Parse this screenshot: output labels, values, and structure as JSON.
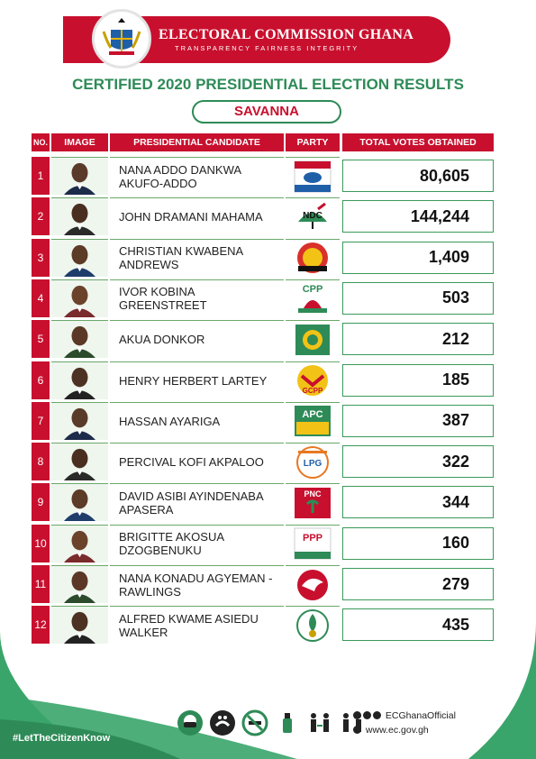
{
  "header": {
    "title": "ELECTORAL COMMISSION GHANA",
    "subtitle": "TRANSPARENCY  FAIRNESS  INTEGRITY"
  },
  "page_title": "CERTIFIED 2020 PRESIDENTIAL ELECTION RESULTS",
  "region": "SAVANNA",
  "columns": {
    "no": "NO.",
    "image": "IMAGE",
    "candidate": "PRESIDENTIAL CANDIDATE",
    "party": "PARTY",
    "votes": "TOTAL VOTES OBTAINED"
  },
  "rows": [
    {
      "no": "1",
      "name": "NANA ADDO DANKWA AKUFO-ADDO",
      "party_label": "",
      "party_icon": "npp-elephant-icon",
      "votes": "80,605"
    },
    {
      "no": "2",
      "name": "JOHN DRAMANI MAHAMA",
      "party_label": "NDC",
      "party_icon": "ndc-umbrella-icon",
      "votes": "144,244"
    },
    {
      "no": "3",
      "name": "CHRISTIAN KWABENA ANDREWS",
      "party_label": "",
      "party_icon": "gum-logo-icon",
      "votes": "1,409"
    },
    {
      "no": "4",
      "name": "IVOR KOBINA GREENSTREET",
      "party_label": "CPP",
      "party_icon": "cpp-cockerel-icon",
      "votes": "503"
    },
    {
      "no": "5",
      "name": "AKUA DONKOR",
      "party_label": "",
      "party_icon": "gfp-logo-icon",
      "votes": "212"
    },
    {
      "no": "6",
      "name": "HENRY HERBERT LARTEY",
      "party_label": "GCPP",
      "party_icon": "gcpp-logo-icon",
      "votes": "185"
    },
    {
      "no": "7",
      "name": "HASSAN AYARIGA",
      "party_label": "APC",
      "party_icon": "apc-logo-icon",
      "votes": "387"
    },
    {
      "no": "8",
      "name": "PERCIVAL KOFI AKPALOO",
      "party_label": "LPG",
      "party_icon": "lpg-logo-icon",
      "votes": "322"
    },
    {
      "no": "9",
      "name": "DAVID ASIBI AYINDENABA APASERA",
      "party_label": "PNC",
      "party_icon": "pnc-logo-icon",
      "votes": "344"
    },
    {
      "no": "10",
      "name": "BRIGITTE AKOSUA DZOGBENUKU",
      "party_label": "PPP",
      "party_icon": "ppp-logo-icon",
      "votes": "160"
    },
    {
      "no": "11",
      "name": "NANA KONADU AGYEMAN - RAWLINGS",
      "party_label": "",
      "party_icon": "ndp-dove-icon",
      "votes": "279"
    },
    {
      "no": "12",
      "name": "ALFRED KWAME ASIEDU WALKER",
      "party_label": "",
      "party_icon": "independent-logo-icon",
      "votes": "435"
    }
  ],
  "footer": {
    "hashtag": "#LetTheCitizenKnow",
    "social_handle": "ECGhanaOfficial",
    "website": "www.ec.gov.gh"
  },
  "colors": {
    "brand_red": "#c8102e",
    "brand_green": "#2e8b57"
  }
}
